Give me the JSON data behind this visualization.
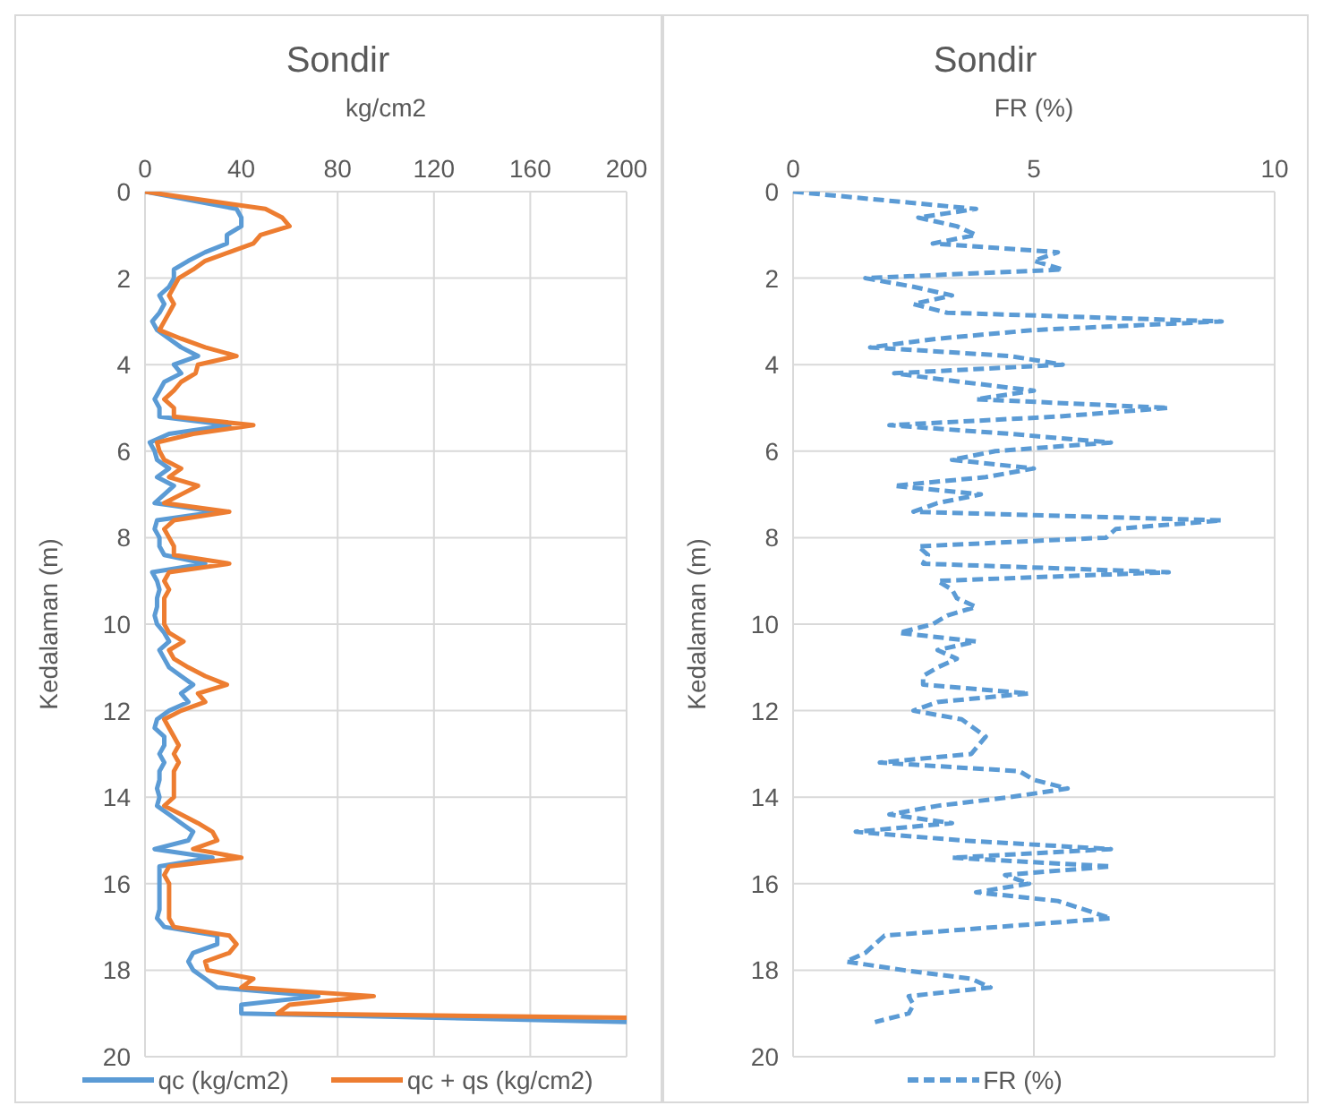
{
  "chart_data": [
    {
      "type": "line",
      "title": "Sondir",
      "xlabel": "kg/cm2",
      "ylabel": "Kedalaman (m)",
      "xlim": [
        0,
        200
      ],
      "xticks": [
        0,
        40,
        80,
        120,
        160,
        200
      ],
      "ylim": [
        20,
        0
      ],
      "yticks": [
        0,
        2,
        4,
        6,
        8,
        10,
        12,
        14,
        16,
        18,
        20
      ],
      "grid": true,
      "legend": "bottom",
      "marker": "none",
      "line_style": "solid",
      "series": [
        {
          "name": "qc (kg/cm2)",
          "color": "#5b9bd5",
          "x": [
            0,
            38,
            40,
            40,
            34,
            34,
            25,
            18,
            12,
            12,
            10,
            6,
            8,
            6,
            3,
            5,
            10,
            15,
            22,
            12,
            15,
            8,
            6,
            4,
            6,
            6,
            35,
            10,
            2,
            4,
            5,
            10,
            5,
            12,
            8,
            4,
            30,
            5,
            4,
            6,
            6,
            8,
            25,
            3,
            5,
            6,
            5,
            5,
            4,
            5,
            8,
            10,
            6,
            8,
            10,
            15,
            20,
            15,
            18,
            10,
            5,
            4,
            8,
            8,
            6,
            8,
            6,
            6,
            5,
            6,
            5,
            10,
            15,
            20,
            18,
            4,
            28,
            6,
            6,
            6,
            6,
            6,
            6,
            5,
            8,
            30,
            30,
            20,
            18,
            20,
            25,
            30,
            72,
            40,
            40,
            200
          ],
          "values": [
            0,
            0.4,
            0.6,
            0.8,
            1.0,
            1.2,
            1.4,
            1.6,
            1.8,
            2.0,
            2.2,
            2.4,
            2.6,
            2.8,
            3.0,
            3.2,
            3.4,
            3.6,
            3.8,
            4.0,
            4.2,
            4.4,
            4.6,
            4.8,
            5.0,
            5.2,
            5.4,
            5.6,
            5.8,
            6.0,
            6.2,
            6.4,
            6.6,
            6.8,
            7.0,
            7.2,
            7.4,
            7.6,
            7.8,
            8.0,
            8.2,
            8.4,
            8.6,
            8.8,
            9.0,
            9.2,
            9.4,
            9.6,
            9.8,
            10.0,
            10.2,
            10.4,
            10.6,
            10.8,
            11.0,
            11.2,
            11.4,
            11.6,
            11.8,
            12.0,
            12.2,
            12.4,
            12.6,
            12.8,
            13.0,
            13.2,
            13.4,
            13.6,
            13.8,
            14.0,
            14.2,
            14.4,
            14.6,
            14.8,
            15.0,
            15.2,
            15.4,
            15.6,
            15.8,
            16.0,
            16.2,
            16.4,
            16.6,
            16.8,
            17.0,
            17.2,
            17.4,
            17.6,
            17.8,
            18.0,
            18.2,
            18.4,
            18.6,
            18.8,
            19.0,
            19.2
          ]
        },
        {
          "name": "qc + qs (kg/cm2)",
          "color": "#ed7d31",
          "x": [
            0,
            50,
            57,
            60,
            48,
            45,
            35,
            25,
            20,
            14,
            12,
            10,
            12,
            10,
            8,
            6,
            15,
            25,
            38,
            22,
            21,
            15,
            12,
            8,
            12,
            12,
            45,
            20,
            5,
            6,
            8,
            15,
            10,
            22,
            15,
            8,
            35,
            12,
            8,
            10,
            12,
            12,
            35,
            10,
            8,
            10,
            8,
            8,
            8,
            8,
            10,
            16,
            10,
            12,
            18,
            25,
            34,
            22,
            25,
            15,
            8,
            10,
            12,
            14,
            12,
            14,
            12,
            12,
            12,
            12,
            8,
            15,
            22,
            28,
            30,
            20,
            40,
            10,
            8,
            10,
            10,
            10,
            10,
            10,
            12,
            35,
            38,
            35,
            25,
            26,
            45,
            40,
            95,
            60,
            55,
            200
          ],
          "values": [
            0,
            0.4,
            0.6,
            0.8,
            1.0,
            1.2,
            1.4,
            1.6,
            1.8,
            2.0,
            2.2,
            2.4,
            2.6,
            2.8,
            3.0,
            3.2,
            3.4,
            3.6,
            3.8,
            4.0,
            4.2,
            4.4,
            4.6,
            4.8,
            5.0,
            5.2,
            5.4,
            5.6,
            5.8,
            6.0,
            6.2,
            6.4,
            6.6,
            6.8,
            7.0,
            7.2,
            7.4,
            7.6,
            7.8,
            8.0,
            8.2,
            8.4,
            8.6,
            8.8,
            9.0,
            9.2,
            9.4,
            9.6,
            9.8,
            10.0,
            10.2,
            10.4,
            10.6,
            10.8,
            11.0,
            11.2,
            11.4,
            11.6,
            11.8,
            12.0,
            12.2,
            12.4,
            12.6,
            12.8,
            13.0,
            13.2,
            13.4,
            13.6,
            13.8,
            14.0,
            14.2,
            14.4,
            14.6,
            14.8,
            15.0,
            15.2,
            15.4,
            15.6,
            15.8,
            16.0,
            16.2,
            16.4,
            16.6,
            16.8,
            17.0,
            17.2,
            17.4,
            17.6,
            17.8,
            18.0,
            18.2,
            18.4,
            18.6,
            18.8,
            19.0,
            19.1
          ]
        }
      ]
    },
    {
      "type": "line",
      "title": "Sondir",
      "xlabel": "FR (%)",
      "ylabel": "Kedalaman (m)",
      "xlim": [
        0,
        10
      ],
      "xticks": [
        0,
        5,
        10
      ],
      "ylim": [
        20,
        0
      ],
      "yticks": [
        0,
        2,
        4,
        6,
        8,
        10,
        12,
        14,
        16,
        18,
        20
      ],
      "grid": true,
      "legend": "bottom",
      "marker": "none",
      "line_style": "dashed",
      "series": [
        {
          "name": "FR (%)",
          "color": "#5b9bd5",
          "x": [
            0,
            3.8,
            3.2,
            2.6,
            3.4,
            3.8,
            2.9,
            5.5,
            5.0,
            5.6,
            1.5,
            2.5,
            3.3,
            2.5,
            3.2,
            8.9,
            5.0,
            3.0,
            1.6,
            4.5,
            5.6,
            2.1,
            3.5,
            5.0,
            3.8,
            7.8,
            5.5,
            2.0,
            4.5,
            6.6,
            4.2,
            3.3,
            5.0,
            4.0,
            2.1,
            3.9,
            3.0,
            2.5,
            8.9,
            6.7,
            6.5,
            2.6,
            2.8,
            2.7,
            7.8,
            3.0,
            3.3,
            3.4,
            3.8,
            3.2,
            2.9,
            2.2,
            3.8,
            3.0,
            3.4,
            3.0,
            2.7,
            2.7,
            4.9,
            3.0,
            2.5,
            3.5,
            4.0,
            3.7,
            1.8,
            4.7,
            5.0,
            5.7,
            4.5,
            3.0,
            2.0,
            3.3,
            1.3,
            3.5,
            6.6,
            3.3,
            6.6,
            4.4,
            4.9,
            3.8,
            5.5,
            6.6,
            1.9,
            1.5,
            1.1,
            2.3,
            3.7,
            4.1,
            2.4,
            2.5,
            2.4,
            1.7
          ],
          "values": [
            0,
            0.4,
            0.5,
            0.6,
            0.8,
            1.0,
            1.2,
            1.4,
            1.6,
            1.8,
            2.0,
            2.2,
            2.4,
            2.6,
            2.8,
            3.0,
            3.2,
            3.4,
            3.6,
            3.8,
            4.0,
            4.2,
            4.4,
            4.6,
            4.8,
            5.0,
            5.2,
            5.4,
            5.6,
            5.8,
            6.0,
            6.2,
            6.4,
            6.6,
            6.8,
            7.0,
            7.2,
            7.4,
            7.6,
            7.8,
            8.0,
            8.2,
            8.4,
            8.6,
            8.8,
            9.0,
            9.2,
            9.4,
            9.6,
            9.8,
            10.0,
            10.2,
            10.4,
            10.6,
            10.8,
            11.0,
            11.2,
            11.4,
            11.6,
            11.8,
            12.0,
            12.2,
            12.6,
            13.0,
            13.2,
            13.4,
            13.6,
            13.8,
            14.0,
            14.2,
            14.4,
            14.6,
            14.8,
            15.0,
            15.2,
            15.4,
            15.6,
            15.8,
            16.0,
            16.2,
            16.4,
            16.8,
            17.2,
            17.6,
            17.8,
            18.0,
            18.2,
            18.4,
            18.6,
            18.8,
            19.0,
            19.2
          ]
        }
      ]
    }
  ]
}
